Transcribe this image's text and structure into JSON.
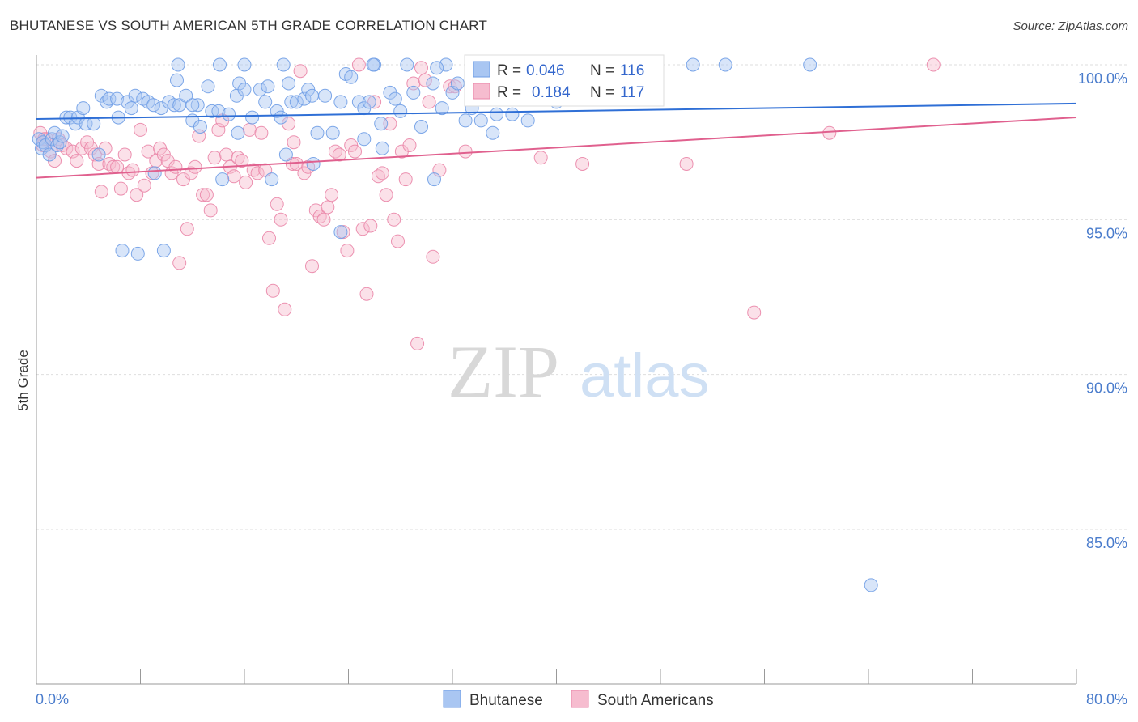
{
  "title": "BHUTANESE VS SOUTH AMERICAN 5TH GRADE CORRELATION CHART",
  "source": "Source: ZipAtlas.com",
  "watermark": {
    "zip": "ZIP",
    "atlas": "atlas"
  },
  "legend": {
    "r_label": "R =",
    "n_label": "N =",
    "rows": [
      {
        "r": "0.046",
        "n": "116"
      },
      {
        "r": "0.184",
        "n": "117"
      }
    ]
  },
  "chart_data": {
    "type": "scatter",
    "title": "BHUTANESE VS SOUTH AMERICAN 5TH GRADE CORRELATION CHART",
    "xlabel": "",
    "ylabel": "5th Grade",
    "xlim": [
      0,
      80
    ],
    "ylim": [
      80.5,
      101
    ],
    "x_ticks": [
      "0.0%",
      "80.0%"
    ],
    "y_ticks": [
      {
        "value": 100,
        "label": "100.0%"
      },
      {
        "value": 95,
        "label": "95.0%"
      },
      {
        "value": 90,
        "label": "90.0%"
      },
      {
        "value": 85,
        "label": "85.0%"
      }
    ],
    "grid": true,
    "legend_position": "top-center",
    "series": [
      {
        "name": "Bhutanese",
        "color": "#6f9de6",
        "fill": "#a9c6f2",
        "r": 0.046,
        "n": 116,
        "trend": [
          [
            0,
            98.25
          ],
          [
            80,
            98.75
          ]
        ],
        "points": [
          [
            0.2,
            97.6
          ],
          [
            0.4,
            97.3
          ],
          [
            0.5,
            97.5
          ],
          [
            0.7,
            97.4
          ],
          [
            1.0,
            97.1
          ],
          [
            1.2,
            97.6
          ],
          [
            1.4,
            97.8
          ],
          [
            1.6,
            97.4
          ],
          [
            1.8,
            97.5
          ],
          [
            2.0,
            97.7
          ],
          [
            2.3,
            98.3
          ],
          [
            2.6,
            98.3
          ],
          [
            3.0,
            98.1
          ],
          [
            3.2,
            98.3
          ],
          [
            3.8,
            98.1
          ],
          [
            4.4,
            98.1
          ],
          [
            3.6,
            98.6
          ],
          [
            4.8,
            97.1
          ],
          [
            5.0,
            99.0
          ],
          [
            5.4,
            98.8
          ],
          [
            5.6,
            98.9
          ],
          [
            6.2,
            98.9
          ],
          [
            6.3,
            98.3
          ],
          [
            7.0,
            98.8
          ],
          [
            7.3,
            98.6
          ],
          [
            7.6,
            99.0
          ],
          [
            8.2,
            98.9
          ],
          [
            8.6,
            98.8
          ],
          [
            9.0,
            98.7
          ],
          [
            9.6,
            98.6
          ],
          [
            10.2,
            98.8
          ],
          [
            10.6,
            98.7
          ],
          [
            11.0,
            98.7
          ],
          [
            10.8,
            99.5
          ],
          [
            11.5,
            99.0
          ],
          [
            12.0,
            98.2
          ],
          [
            12.4,
            98.7
          ],
          [
            12.6,
            98.0
          ],
          [
            13.2,
            99.3
          ],
          [
            13.5,
            98.5
          ],
          [
            14.0,
            98.5
          ],
          [
            14.8,
            98.4
          ],
          [
            15.4,
            99.0
          ],
          [
            15.6,
            99.4
          ],
          [
            16.0,
            99.2
          ],
          [
            16.6,
            98.3
          ],
          [
            17.2,
            99.2
          ],
          [
            17.8,
            99.3
          ],
          [
            17.6,
            98.8
          ],
          [
            18.5,
            98.5
          ],
          [
            18.8,
            98.3
          ],
          [
            19.4,
            99.4
          ],
          [
            19.6,
            98.8
          ],
          [
            20.0,
            98.8
          ],
          [
            20.6,
            98.9
          ],
          [
            20.9,
            99.2
          ],
          [
            21.2,
            99.0
          ],
          [
            21.6,
            97.8
          ],
          [
            22.2,
            99.0
          ],
          [
            22.8,
            97.8
          ],
          [
            23.4,
            98.8
          ],
          [
            23.8,
            99.7
          ],
          [
            24.2,
            99.6
          ],
          [
            24.8,
            98.8
          ],
          [
            25.2,
            98.6
          ],
          [
            25.6,
            98.8
          ],
          [
            26.0,
            100.0
          ],
          [
            26.5,
            98.1
          ],
          [
            27.2,
            99.1
          ],
          [
            27.6,
            98.9
          ],
          [
            28.0,
            98.5
          ],
          [
            29.0,
            99.1
          ],
          [
            29.6,
            98.0
          ],
          [
            30.5,
            99.4
          ],
          [
            31.2,
            98.6
          ],
          [
            32.0,
            99.1
          ],
          [
            32.4,
            99.4
          ],
          [
            33.0,
            98.2
          ],
          [
            33.5,
            98.6
          ],
          [
            34.2,
            98.2
          ],
          [
            35.1,
            97.8
          ],
          [
            35.4,
            98.4
          ],
          [
            36.6,
            98.4
          ],
          [
            37.8,
            98.2
          ],
          [
            40.0,
            98.8
          ],
          [
            6.6,
            94.0
          ],
          [
            7.8,
            93.9
          ],
          [
            9.8,
            94.0
          ],
          [
            23.4,
            94.6
          ],
          [
            12.0,
            98.7
          ],
          [
            9.1,
            96.5
          ],
          [
            14.3,
            96.3
          ],
          [
            18.1,
            96.3
          ],
          [
            19.2,
            97.1
          ],
          [
            21.3,
            96.8
          ],
          [
            26.6,
            97.3
          ],
          [
            30.6,
            96.3
          ],
          [
            25.2,
            97.6
          ],
          [
            15.5,
            97.8
          ],
          [
            14.1,
            100.0
          ],
          [
            16.0,
            100.0
          ],
          [
            10.9,
            100.0
          ],
          [
            19.0,
            100.0
          ],
          [
            25.9,
            100.0
          ],
          [
            28.5,
            100.0
          ],
          [
            31.5,
            100.0
          ],
          [
            43.0,
            100.0
          ],
          [
            50.5,
            100.0
          ],
          [
            53.0,
            100.0
          ],
          [
            59.5,
            100.0
          ],
          [
            44.0,
            99.8
          ],
          [
            38.2,
            99.9
          ],
          [
            30.8,
            99.9
          ],
          [
            42.3,
            99.2
          ],
          [
            64.2,
            83.2
          ],
          [
            37.0,
            99.2
          ]
        ]
      },
      {
        "name": "South Americans",
        "color": "#ea86a8",
        "fill": "#f6bccf",
        "r": 0.184,
        "n": 117,
        "trend": [
          [
            0,
            96.35
          ],
          [
            80,
            98.3
          ]
        ],
        "points": [
          [
            0.3,
            97.8
          ],
          [
            0.5,
            97.4
          ],
          [
            0.8,
            97.6
          ],
          [
            1.1,
            97.2
          ],
          [
            1.4,
            96.9
          ],
          [
            1.7,
            97.6
          ],
          [
            2.0,
            97.4
          ],
          [
            2.3,
            97.3
          ],
          [
            2.8,
            97.2
          ],
          [
            3.1,
            96.9
          ],
          [
            3.5,
            97.3
          ],
          [
            3.9,
            97.5
          ],
          [
            4.2,
            97.3
          ],
          [
            4.5,
            97.1
          ],
          [
            4.8,
            96.8
          ],
          [
            5.0,
            95.9
          ],
          [
            5.3,
            97.3
          ],
          [
            5.6,
            96.8
          ],
          [
            5.9,
            96.7
          ],
          [
            6.2,
            96.7
          ],
          [
            6.5,
            96.0
          ],
          [
            6.8,
            97.1
          ],
          [
            7.1,
            96.5
          ],
          [
            7.4,
            96.6
          ],
          [
            7.7,
            95.8
          ],
          [
            8.0,
            97.9
          ],
          [
            8.3,
            96.1
          ],
          [
            8.6,
            97.2
          ],
          [
            8.9,
            96.5
          ],
          [
            9.2,
            96.9
          ],
          [
            9.5,
            97.3
          ],
          [
            9.8,
            97.1
          ],
          [
            10.1,
            96.9
          ],
          [
            10.4,
            96.5
          ],
          [
            10.7,
            96.7
          ],
          [
            11.0,
            93.6
          ],
          [
            11.3,
            96.3
          ],
          [
            11.6,
            94.7
          ],
          [
            11.9,
            96.5
          ],
          [
            12.2,
            96.7
          ],
          [
            12.5,
            97.7
          ],
          [
            12.8,
            95.8
          ],
          [
            13.1,
            95.8
          ],
          [
            13.4,
            95.3
          ],
          [
            13.7,
            97.0
          ],
          [
            14.0,
            97.9
          ],
          [
            14.3,
            98.2
          ],
          [
            14.6,
            97.1
          ],
          [
            14.9,
            96.7
          ],
          [
            15.2,
            96.4
          ],
          [
            15.5,
            97.0
          ],
          [
            15.8,
            96.9
          ],
          [
            16.1,
            96.2
          ],
          [
            16.4,
            97.9
          ],
          [
            16.7,
            96.6
          ],
          [
            17.0,
            96.5
          ],
          [
            17.3,
            97.8
          ],
          [
            17.6,
            96.6
          ],
          [
            17.9,
            94.4
          ],
          [
            18.2,
            92.7
          ],
          [
            18.5,
            95.5
          ],
          [
            18.8,
            95.0
          ],
          [
            19.1,
            92.1
          ],
          [
            19.4,
            98.1
          ],
          [
            19.7,
            96.8
          ],
          [
            20.0,
            96.8
          ],
          [
            20.3,
            99.8
          ],
          [
            20.6,
            96.5
          ],
          [
            20.9,
            96.7
          ],
          [
            21.2,
            93.5
          ],
          [
            21.5,
            95.3
          ],
          [
            21.8,
            95.1
          ],
          [
            22.1,
            95.0
          ],
          [
            22.4,
            95.4
          ],
          [
            22.7,
            95.8
          ],
          [
            23.0,
            97.2
          ],
          [
            23.3,
            97.1
          ],
          [
            23.6,
            94.6
          ],
          [
            23.9,
            94.0
          ],
          [
            24.2,
            97.4
          ],
          [
            24.5,
            97.2
          ],
          [
            24.8,
            100.0
          ],
          [
            25.1,
            94.7
          ],
          [
            25.4,
            92.6
          ],
          [
            25.7,
            94.8
          ],
          [
            26.0,
            98.8
          ],
          [
            26.3,
            96.4
          ],
          [
            26.6,
            96.5
          ],
          [
            26.9,
            95.8
          ],
          [
            27.2,
            98.1
          ],
          [
            27.5,
            95.0
          ],
          [
            27.8,
            94.3
          ],
          [
            28.1,
            97.2
          ],
          [
            28.4,
            96.3
          ],
          [
            28.7,
            97.4
          ],
          [
            29.0,
            99.4
          ],
          [
            29.3,
            91.0
          ],
          [
            29.6,
            99.9
          ],
          [
            29.9,
            99.5
          ],
          [
            30.2,
            98.8
          ],
          [
            30.5,
            93.8
          ],
          [
            31.0,
            96.6
          ],
          [
            31.8,
            99.3
          ],
          [
            33.0,
            97.2
          ],
          [
            34.0,
            99.5
          ],
          [
            35.0,
            99.0
          ],
          [
            37.0,
            100.0
          ],
          [
            37.8,
            99.6
          ],
          [
            38.8,
            97.0
          ],
          [
            42.0,
            96.8
          ],
          [
            50.0,
            96.8
          ],
          [
            55.2,
            92.0
          ],
          [
            61.0,
            97.8
          ],
          [
            69.0,
            100.0
          ],
          [
            32.2,
            99.3
          ],
          [
            19.8,
            97.5
          ],
          [
            0.6,
            97.6
          ]
        ]
      }
    ]
  },
  "bottom_legend": [
    "Bhutanese",
    "South Americans"
  ]
}
